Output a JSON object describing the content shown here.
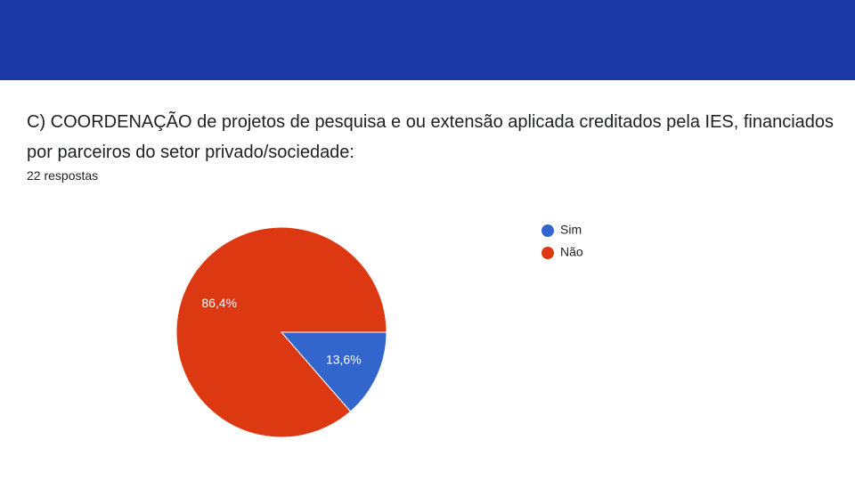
{
  "chart_data": {
    "type": "pie",
    "title": "C) COORDENAÇÃO de projetos de pesquisa e ou extensão aplicada creditados pela IES, financiados por parceiros do setor privado/sociedade:",
    "subtitle": "22 respostas",
    "categories": [
      "Sim",
      "Não"
    ],
    "values": [
      13.6,
      86.4
    ],
    "value_labels": [
      "13,6%",
      "86,4%"
    ],
    "colors": [
      "#3366cc",
      "#dc3912"
    ],
    "legend": "right"
  }
}
